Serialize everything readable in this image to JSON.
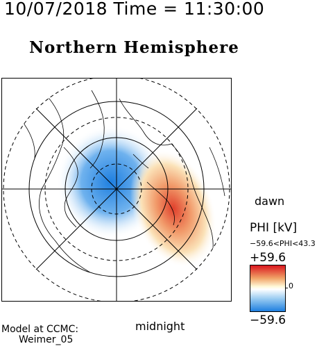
{
  "header": {
    "timestamp": "10/07/2018 Time = 11:30:00",
    "hemisphere_title": "Northern Hemisphere"
  },
  "map": {
    "labels": {
      "dawn": "dawn",
      "midnight": "midnight"
    },
    "projection": "polar",
    "potential_pattern": {
      "negative_cell_side": "dusk",
      "positive_cell_side": "dawn",
      "colors": {
        "positive": "#d9161e",
        "negative": "#1e7fe0",
        "neutral": "#ffffff"
      }
    }
  },
  "legend": {
    "quantity_label": "PHI [kV]",
    "range_text": "−59.6<PHI<43.3",
    "max_label": "+59.6",
    "zero_label": "0",
    "min_label": "−59.6"
  },
  "credits": {
    "line1": "Model at CCMC:",
    "line2": "Weimer_05"
  }
}
